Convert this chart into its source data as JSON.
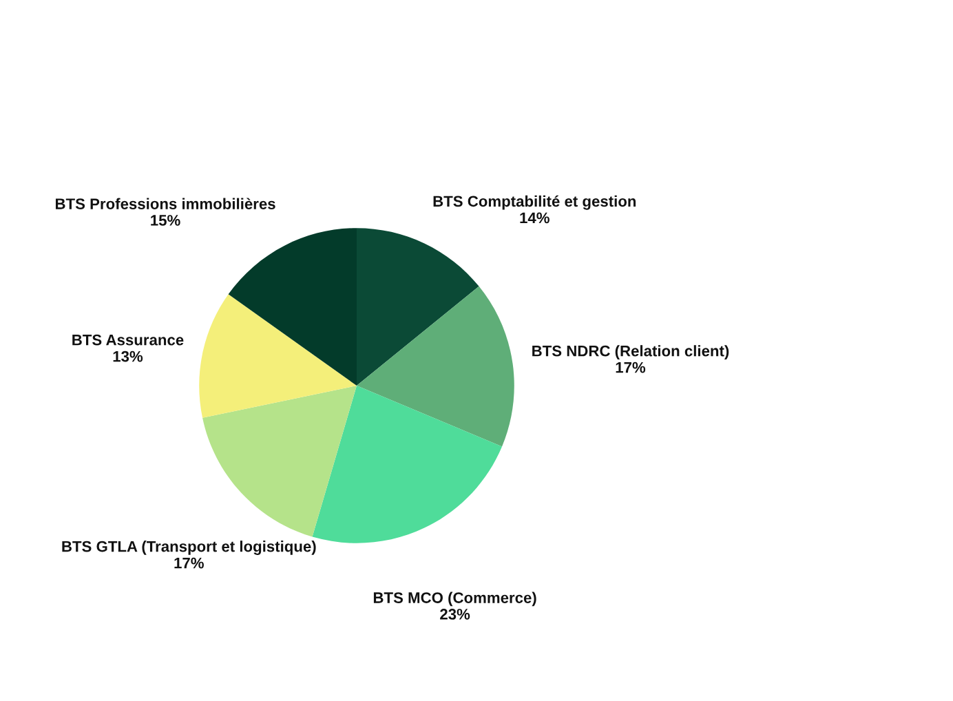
{
  "chart_data": {
    "type": "pie",
    "categories": [
      "BTS Comptabilité et gestion",
      "BTS NDRC (Relation client)",
      "BTS MCO (Commerce)",
      "BTS GTLA (Transport et logistique)",
      "BTS Assurance",
      "BTS Professions immobilières"
    ],
    "values": [
      14,
      17,
      23,
      17,
      13,
      15
    ],
    "value_labels": [
      "14%",
      "17%",
      "23%",
      "17%",
      "13%",
      "15%"
    ],
    "colors": [
      "#0b4a36",
      "#5fae78",
      "#4fdc9a",
      "#b5e38a",
      "#f4ef7a",
      "#033b2a"
    ],
    "legend": false
  }
}
